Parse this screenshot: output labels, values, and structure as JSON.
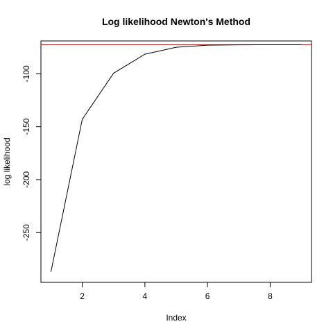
{
  "chart_data": {
    "type": "line",
    "title": "Log likelihood Newton's Method",
    "xlabel": "Index",
    "ylabel": "log likelihood",
    "x": [
      1,
      2,
      3,
      4,
      5,
      6,
      7,
      8,
      9
    ],
    "series": [
      {
        "values": [
          -287,
          -143,
          -99.5,
          -81.5,
          -75,
          -73,
          -72.7,
          -72.6,
          -72.6
        ],
        "color": "#000000"
      }
    ],
    "reference_line": {
      "y": -72.6,
      "color": "#ff0000"
    },
    "xlim": [
      0.68,
      9.32
    ],
    "ylim": [
      -297,
      -69
    ],
    "xticks": [
      2,
      4,
      6,
      8
    ],
    "yticks": [
      -250,
      -200,
      -150,
      -100
    ],
    "grid": false
  }
}
